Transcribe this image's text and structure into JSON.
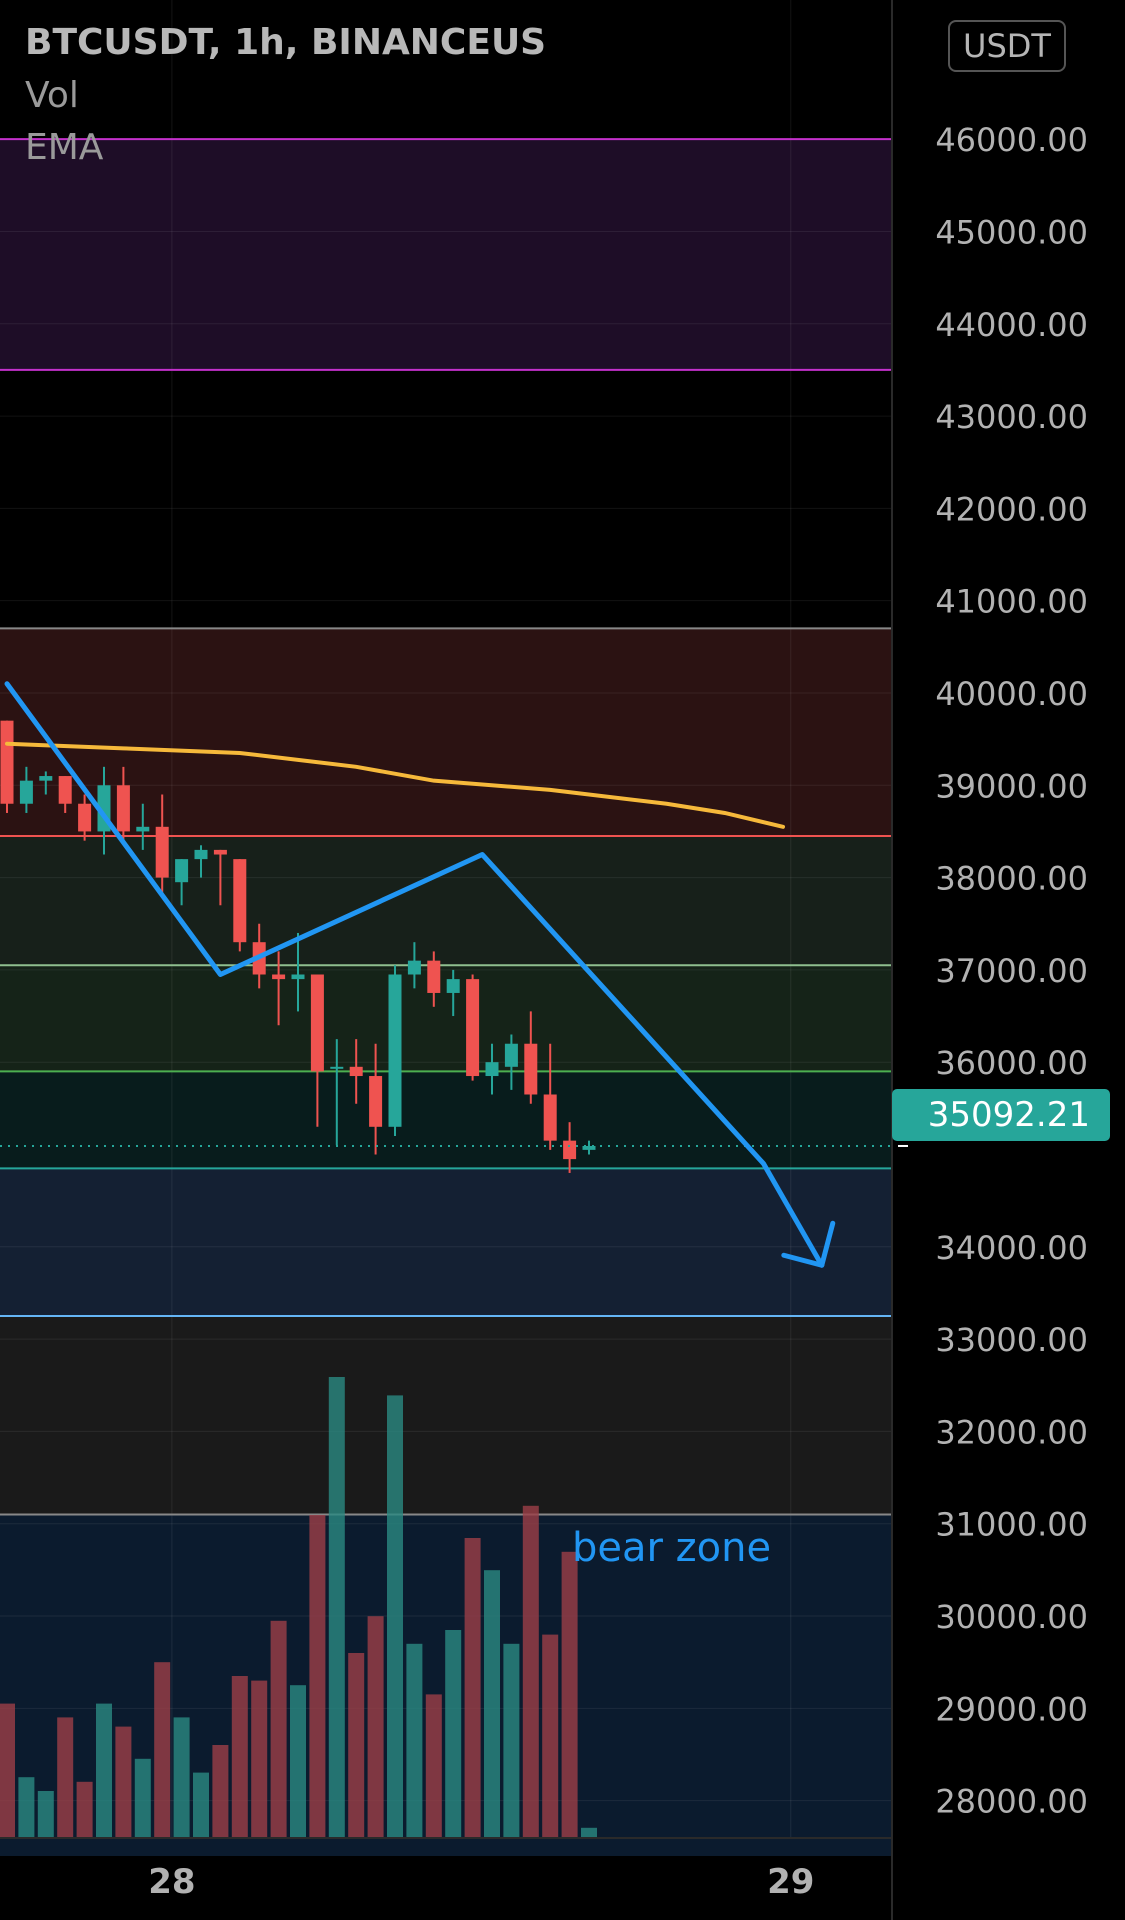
{
  "header": {
    "symbol_line": "BTCUSDT, 1h, BINANCEUS",
    "indicator_vol": "Vol",
    "indicator_ema": "EMA",
    "currency": "USDT"
  },
  "current_price": "35092.21",
  "annotation": "bear zone",
  "colors": {
    "background": "#000000",
    "up": "#26a69a",
    "down": "#ef5350",
    "ema": "#f6b93b",
    "arrow": "#2196f3",
    "price_tag": "#26a69a"
  },
  "chart_data": {
    "type": "candlestick",
    "symbol": "BTCUSDT",
    "interval": "1h",
    "exchange": "BINANCEUS",
    "ylim": [
      27400,
      46500
    ],
    "y_ticks": [
      "46000.00",
      "45000.00",
      "44000.00",
      "43000.00",
      "42000.00",
      "41000.00",
      "40000.00",
      "39000.00",
      "38000.00",
      "37000.00",
      "36000.00",
      "34000.00",
      "33000.00",
      "32000.00",
      "31000.00",
      "30000.00",
      "29000.00",
      "28000.00"
    ],
    "x_ticks": [
      {
        "label": "28",
        "bar": 8.5
      },
      {
        "label": "29",
        "bar": 40.4
      }
    ],
    "grid": true,
    "candles": [
      {
        "o": 39700,
        "h": 39700,
        "l": 38700,
        "c": 38800
      },
      {
        "o": 38800,
        "h": 39200,
        "l": 38700,
        "c": 39050
      },
      {
        "o": 39050,
        "h": 39150,
        "l": 38900,
        "c": 39100
      },
      {
        "o": 39100,
        "h": 39100,
        "l": 38700,
        "c": 38800
      },
      {
        "o": 38800,
        "h": 38900,
        "l": 38400,
        "c": 38500
      },
      {
        "o": 38500,
        "h": 39200,
        "l": 38250,
        "c": 39000
      },
      {
        "o": 39000,
        "h": 39200,
        "l": 38400,
        "c": 38500
      },
      {
        "o": 38500,
        "h": 38800,
        "l": 38300,
        "c": 38550
      },
      {
        "o": 38550,
        "h": 38900,
        "l": 37800,
        "c": 38000
      },
      {
        "o": 37950,
        "h": 38200,
        "l": 37700,
        "c": 38200
      },
      {
        "o": 38200,
        "h": 38350,
        "l": 38000,
        "c": 38300
      },
      {
        "o": 38300,
        "h": 38300,
        "l": 37700,
        "c": 38250
      },
      {
        "o": 38200,
        "h": 38200,
        "l": 37200,
        "c": 37300
      },
      {
        "o": 37300,
        "h": 37500,
        "l": 36800,
        "c": 36950
      },
      {
        "o": 36950,
        "h": 37200,
        "l": 36400,
        "c": 36900
      },
      {
        "o": 36900,
        "h": 37400,
        "l": 36550,
        "c": 36950
      },
      {
        "o": 36950,
        "h": 36950,
        "l": 35300,
        "c": 35900
      },
      {
        "o": 35950,
        "h": 36250,
        "l": 35100,
        "c": 35950
      },
      {
        "o": 35950,
        "h": 36250,
        "l": 35550,
        "c": 35850
      },
      {
        "o": 35850,
        "h": 36200,
        "l": 35000,
        "c": 35300
      },
      {
        "o": 35300,
        "h": 37050,
        "l": 35200,
        "c": 36950
      },
      {
        "o": 36950,
        "h": 37300,
        "l": 36800,
        "c": 37100
      },
      {
        "o": 37100,
        "h": 37200,
        "l": 36600,
        "c": 36750
      },
      {
        "o": 36750,
        "h": 37000,
        "l": 36500,
        "c": 36900
      },
      {
        "o": 36900,
        "h": 36950,
        "l": 35800,
        "c": 35850
      },
      {
        "o": 35850,
        "h": 36200,
        "l": 35650,
        "c": 36000
      },
      {
        "o": 35950,
        "h": 36300,
        "l": 35700,
        "c": 36200
      },
      {
        "o": 36200,
        "h": 36550,
        "l": 35550,
        "c": 35650
      },
      {
        "o": 35650,
        "h": 36200,
        "l": 35050,
        "c": 35150
      },
      {
        "o": 35150,
        "h": 35350,
        "l": 34800,
        "c": 34950
      },
      {
        "o": 35050,
        "h": 35150,
        "l": 35000,
        "c": 35092
      }
    ],
    "volume": [
      {
        "v": 0.29,
        "up": false
      },
      {
        "v": 0.13,
        "up": true
      },
      {
        "v": 0.1,
        "up": true
      },
      {
        "v": 0.26,
        "up": false
      },
      {
        "v": 0.12,
        "up": false
      },
      {
        "v": 0.29,
        "up": true
      },
      {
        "v": 0.24,
        "up": false
      },
      {
        "v": 0.17,
        "up": true
      },
      {
        "v": 0.38,
        "up": false
      },
      {
        "v": 0.26,
        "up": true
      },
      {
        "v": 0.14,
        "up": true
      },
      {
        "v": 0.2,
        "up": false
      },
      {
        "v": 0.35,
        "up": false
      },
      {
        "v": 0.34,
        "up": false
      },
      {
        "v": 0.47,
        "up": false
      },
      {
        "v": 0.33,
        "up": true
      },
      {
        "v": 0.7,
        "up": false
      },
      {
        "v": 1.0,
        "up": true
      },
      {
        "v": 0.4,
        "up": false
      },
      {
        "v": 0.48,
        "up": false
      },
      {
        "v": 0.96,
        "up": true
      },
      {
        "v": 0.42,
        "up": true
      },
      {
        "v": 0.31,
        "up": false
      },
      {
        "v": 0.45,
        "up": true
      },
      {
        "v": 0.65,
        "up": false
      },
      {
        "v": 0.58,
        "up": true
      },
      {
        "v": 0.42,
        "up": true
      },
      {
        "v": 0.72,
        "up": false
      },
      {
        "v": 0.44,
        "up": false
      },
      {
        "v": 0.62,
        "up": false
      },
      {
        "v": 0.02,
        "up": true
      }
    ],
    "ema": [
      {
        "bar": 0,
        "y": 39450
      },
      {
        "bar": 6,
        "y": 39400
      },
      {
        "bar": 12,
        "y": 39350
      },
      {
        "bar": 18,
        "y": 39200
      },
      {
        "bar": 22,
        "y": 39050
      },
      {
        "bar": 28,
        "y": 38950
      },
      {
        "bar": 34,
        "y": 38800
      },
      {
        "bar": 37,
        "y": 38700
      },
      {
        "bar": 40,
        "y": 38550
      }
    ],
    "zones": [
      {
        "from": 43500,
        "to": 46000,
        "fill": "#1e0d27",
        "line_top": "#c431cc",
        "line_bottom": "#c431cc"
      },
      {
        "from": 38450,
        "to": 40700,
        "fill": "#2b1212",
        "line_top": "#888888",
        "line_bottom": "#ef5350"
      },
      {
        "from": 37050,
        "to": 38450,
        "fill": "#17201a",
        "line_bottom": "#8fbf8f"
      },
      {
        "from": 35900,
        "to": 37050,
        "fill": "#152318",
        "line_bottom": "#4caf50"
      },
      {
        "from": 34850,
        "to": 35900,
        "fill": "#081c1c",
        "line_bottom": "#26a69a"
      },
      {
        "from": 33250,
        "to": 34850,
        "fill": "#142033",
        "line_bottom": "#64b5f6"
      },
      {
        "from": 31100,
        "to": 33250,
        "fill": "#1a1a1a",
        "line_bottom": "#888888"
      },
      {
        "from": 27400,
        "to": 31100,
        "fill": "#0b1b2e"
      }
    ],
    "projection_path": [
      {
        "bar": 0,
        "y": 40100
      },
      {
        "bar": 11,
        "y": 36950
      },
      {
        "bar": 24.5,
        "y": 38250
      },
      {
        "bar": 39,
        "y": 34900
      },
      {
        "bar": 42,
        "y": 33800
      }
    ]
  }
}
